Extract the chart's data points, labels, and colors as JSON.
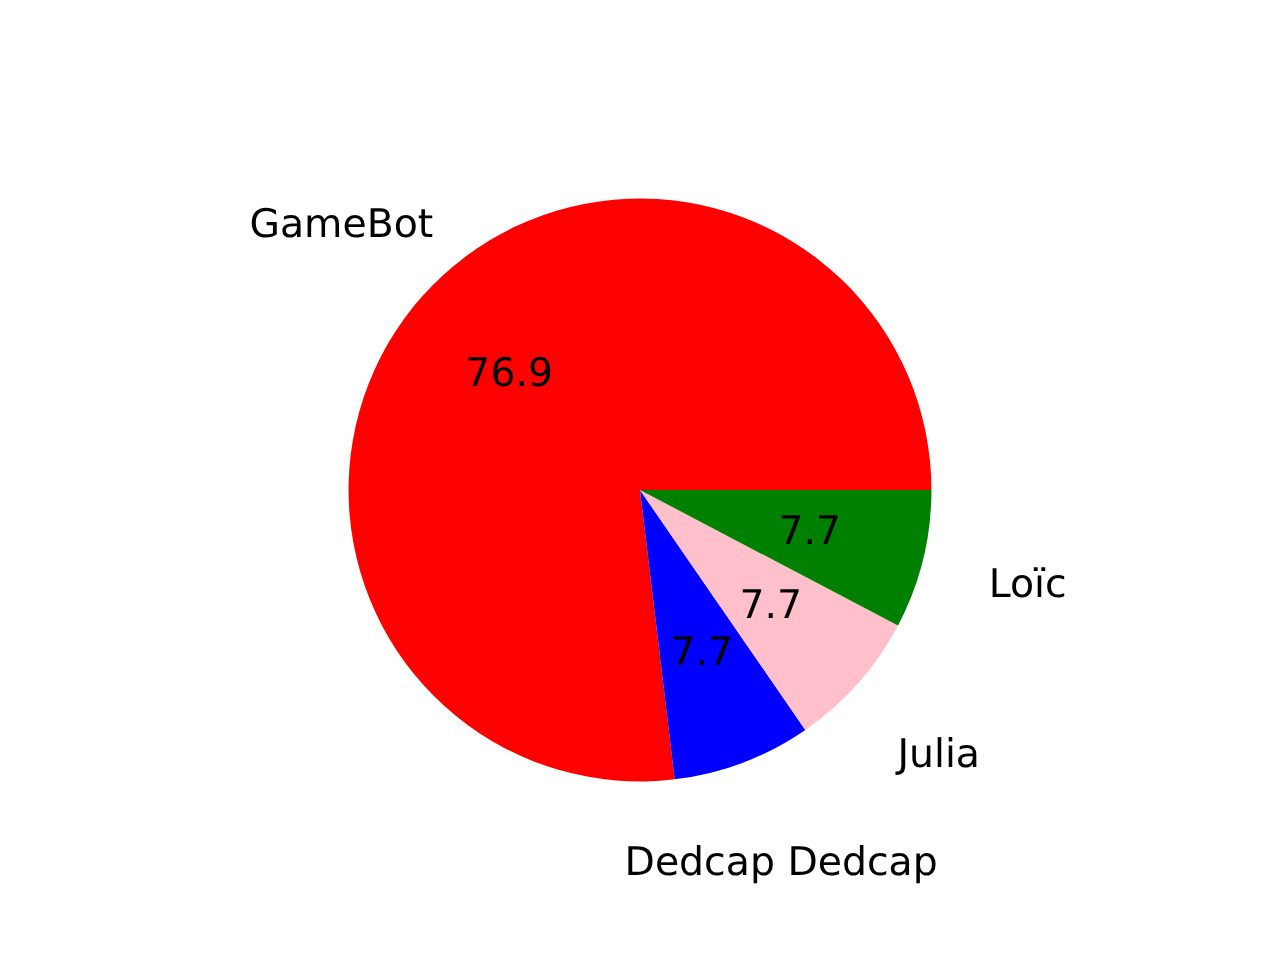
{
  "chart_data": {
    "type": "pie",
    "categories": [
      "GameBot",
      "Dedcap Dedcap",
      "Julia",
      "Loïc"
    ],
    "values": [
      76.9,
      7.7,
      7.7,
      7.7
    ],
    "colors": [
      "#ff0000",
      "#0000ff",
      "#ffc0cb",
      "#008000"
    ],
    "data_labels": true
  }
}
